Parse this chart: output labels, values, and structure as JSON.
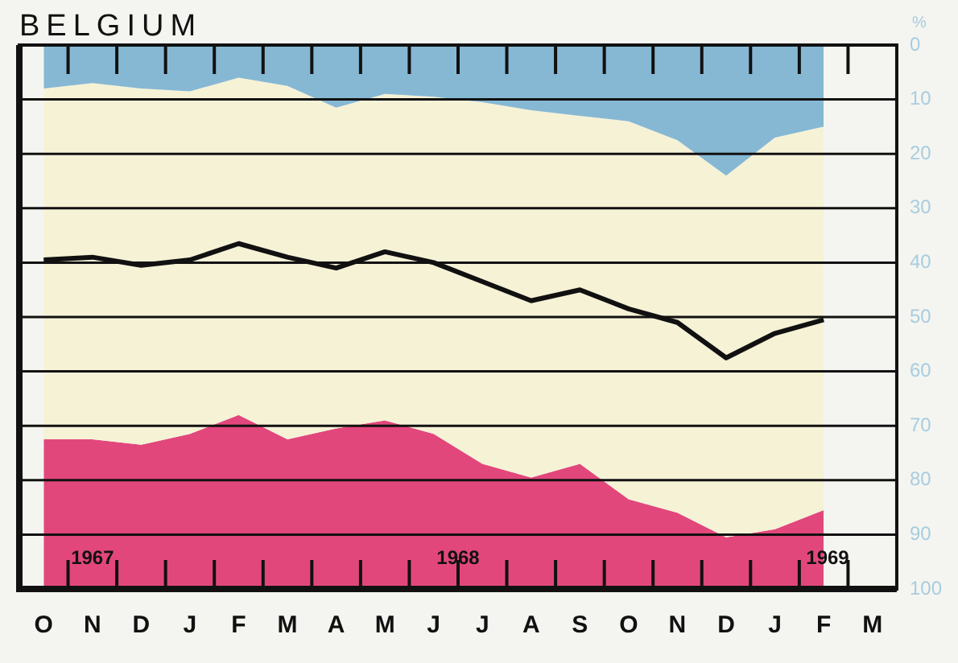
{
  "chart_data": {
    "type": "area",
    "stacked": true,
    "title": "BELGIUM",
    "ylabel": "%",
    "categories": [
      "O",
      "N",
      "D",
      "J",
      "F",
      "M",
      "A",
      "M",
      "J",
      "J",
      "A",
      "S",
      "O",
      "N",
      "D",
      "J",
      "F",
      "M"
    ],
    "ylim": [
      100,
      0
    ],
    "yticks": [
      0,
      10,
      20,
      30,
      40,
      50,
      60,
      70,
      80,
      90,
      100
    ],
    "grid": "y",
    "series": [
      {
        "color": "#86b8d4",
        "values": [
          8,
          7,
          8,
          8.5,
          6,
          7.5,
          11.5,
          9,
          9.5,
          10.5,
          12,
          13,
          14,
          17.5,
          24,
          17,
          15,
          null
        ]
      },
      {
        "color": "#f6f2d6",
        "values": [
          64.5,
          65.5,
          65.5,
          63,
          62,
          65,
          59,
          60,
          62,
          66.5,
          67.5,
          64,
          69.5,
          68.5,
          66.5,
          72,
          70.5,
          null
        ]
      },
      {
        "color": "#e2477c",
        "values": [
          27.5,
          27.5,
          26.5,
          28.5,
          32,
          27.5,
          29.5,
          31,
          28.5,
          23,
          20.5,
          23,
          16.5,
          14,
          9.5,
          11,
          14.5,
          null
        ]
      },
      {
        "type": "line",
        "color": "#111111",
        "values": [
          39.5,
          39,
          40.5,
          39.5,
          36.5,
          39,
          41,
          38,
          40,
          43.5,
          47,
          45,
          48.5,
          51,
          57.5,
          53,
          50.5,
          null
        ]
      }
    ],
    "annotations": [
      "1967",
      "1968",
      "1969"
    ]
  }
}
